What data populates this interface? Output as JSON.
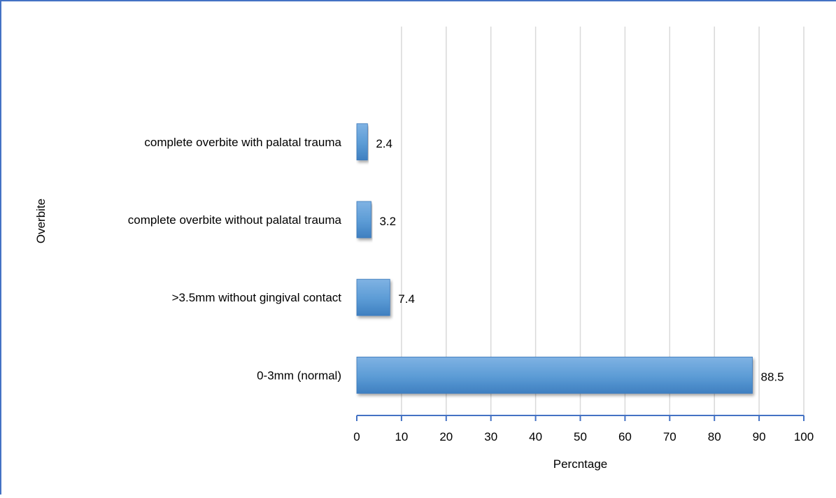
{
  "chart_data": {
    "type": "bar",
    "orientation": "horizontal",
    "categories": [
      "complete overbite with palatal trauma",
      "complete overbite without palatal trauma",
      ">3.5mm without gingival contact",
      "0-3mm (normal)"
    ],
    "values": [
      2.4,
      3.2,
      7.4,
      88.5
    ],
    "data_labels": [
      "2.4",
      "3.2",
      "7.4",
      "88.5"
    ],
    "xlabel": "Percntage",
    "ylabel": "Overbite",
    "xlim": [
      0,
      100
    ],
    "x_ticks": [
      "0",
      "10",
      "20",
      "30",
      "40",
      "50",
      "60",
      "70",
      "80",
      "90",
      "100"
    ],
    "grid": "vertical",
    "legend": "none",
    "colors": {
      "bar": "#5b9bd5",
      "bar_dark": "#3f7fc0",
      "axis": "#4472c4",
      "grid": "#d9d9d9",
      "frame": "#4472c4"
    }
  }
}
